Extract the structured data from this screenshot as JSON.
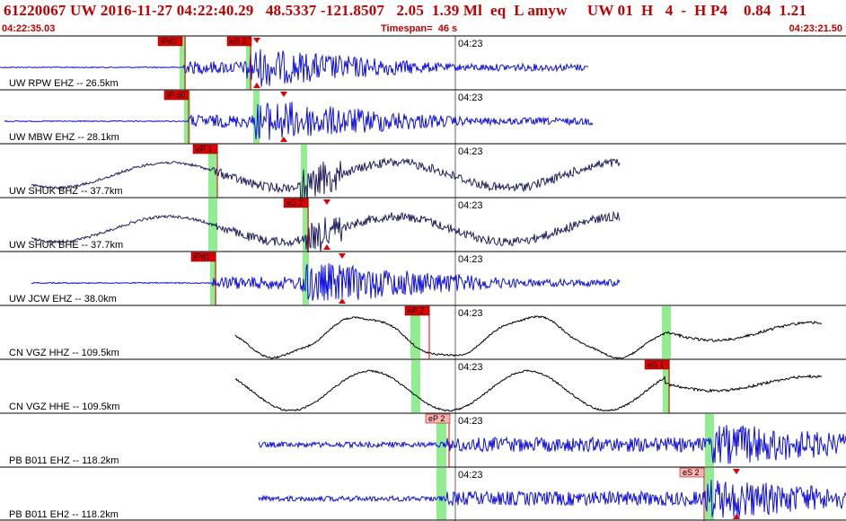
{
  "header": {
    "event_line": "61220067 UW 2016-11-27 04:22:40.29   48.5337 -121.8507   2.05  1.39 Ml  eq  L amyw     UW 01  H   4  -  H P4    0.84  1.21",
    "start_time": "04:22:35.03",
    "timespan_label": "Timespan=",
    "timespan_value": "46 s",
    "end_time": "04:23:21.50"
  },
  "colors": {
    "header_text": "#c00000",
    "trace_blue": "#1010e0",
    "trace_navy": "#202060",
    "trace_black": "#000000",
    "pick_box": "#e00000",
    "pick_box_light": "#ffb0b0",
    "window_green": "#90ee90",
    "marker_red": "#e00000"
  },
  "minute_label": "04:23",
  "traces": [
    {
      "label": "UW RPW EHZ -- 26.5km",
      "color": "#1010e0",
      "picks": [
        {
          "text": "iPd1",
          "light": false
        },
        {
          "text": "eS 2",
          "light": false
        }
      ]
    },
    {
      "label": "UW MBW EHZ -- 28.1km",
      "color": "#1010e0",
      "picks": [
        {
          "text": "iP d0",
          "light": false
        }
      ]
    },
    {
      "label": "UW SHUK BHZ -- 37.7km",
      "color": "#202060",
      "picks": [
        {
          "text": "eP 1",
          "light": false
        }
      ]
    },
    {
      "label": "UW SHUK BHE -- 37.7km",
      "color": "#202060",
      "picks": [
        {
          "text": "eS 2",
          "light": false
        }
      ]
    },
    {
      "label": "UW JCW EHZ -- 38.0km",
      "color": "#1010e0",
      "picks": [
        {
          "text": "iPd1",
          "light": false
        }
      ]
    },
    {
      "label": "CN VGZ HHZ -- 109.5km",
      "color": "#000000",
      "picks": [
        {
          "text": "eP 2",
          "light": false
        }
      ]
    },
    {
      "label": "CN VGZ HHE -- 109.5km",
      "color": "#000000",
      "picks": [
        {
          "text": "eS 1",
          "light": false
        }
      ]
    },
    {
      "label": "PB B011 EHZ -- 118.2km",
      "color": "#1010e0",
      "picks": [
        {
          "text": "eP 2",
          "light": true
        }
      ]
    },
    {
      "label": "PB B011 EH2 -- 118.2km",
      "color": "#1010e0",
      "picks": [
        {
          "text": "eS 2",
          "light": true
        }
      ]
    }
  ]
}
